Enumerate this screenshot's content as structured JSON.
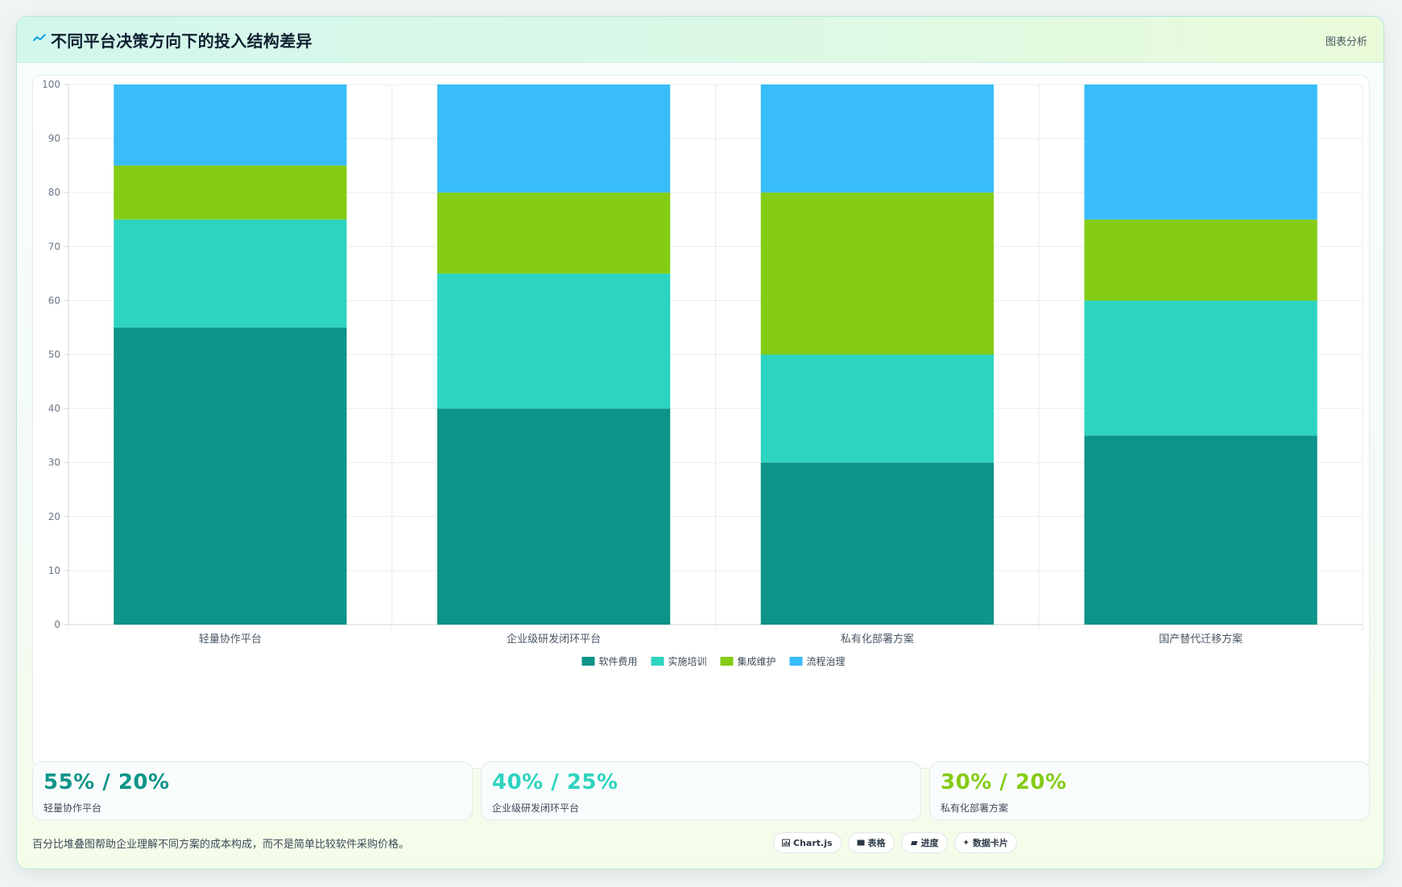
{
  "header": {
    "title": "不同平台决策方向下的投入结构差异",
    "tag": "图表分析"
  },
  "colors": {
    "software": "#0d9488",
    "training": "#2dd4bf",
    "integration": "#84cc16",
    "governance": "#38bdf8"
  },
  "chart_data": {
    "type": "bar",
    "stacked": true,
    "categories": [
      "轻量协作平台",
      "企业级研发闭环平台",
      "私有化部署方案",
      "国产替代迁移方案"
    ],
    "series": [
      {
        "name": "软件费用",
        "color": "#0d9488",
        "values": [
          55,
          40,
          30,
          35
        ]
      },
      {
        "name": "实施培训",
        "color": "#2dd4bf",
        "values": [
          20,
          25,
          20,
          25
        ]
      },
      {
        "name": "集成维护",
        "color": "#84cc16",
        "values": [
          10,
          15,
          30,
          15
        ]
      },
      {
        "name": "流程治理",
        "color": "#38bdf8",
        "values": [
          15,
          20,
          20,
          25
        ]
      }
    ],
    "ylim": [
      0,
      100
    ],
    "yticks": [
      0,
      10,
      20,
      30,
      40,
      50,
      60,
      70,
      80,
      90,
      100
    ],
    "grid": true,
    "legend": "bottom-center"
  },
  "kpis": [
    {
      "value": "55% / 20%",
      "label": "轻量协作平台",
      "color": "#0d9488"
    },
    {
      "value": "40% / 25%",
      "label": "企业级研发闭环平台",
      "color": "#2dd4bf"
    },
    {
      "value": "30% / 20%",
      "label": "私有化部署方案",
      "color": "#84cc16"
    }
  ],
  "footer": {
    "note": "百分比堆叠图帮助企业理解不同方案的成本构成，而不是简单比较软件采购价格。",
    "pills": [
      {
        "icon": "chart-icon",
        "label": "Chart.js"
      },
      {
        "icon": "table-icon",
        "label": "表格"
      },
      {
        "icon": "progress-icon",
        "label": "进度"
      },
      {
        "icon": "sparkle-icon",
        "label": "数据卡片"
      }
    ]
  }
}
